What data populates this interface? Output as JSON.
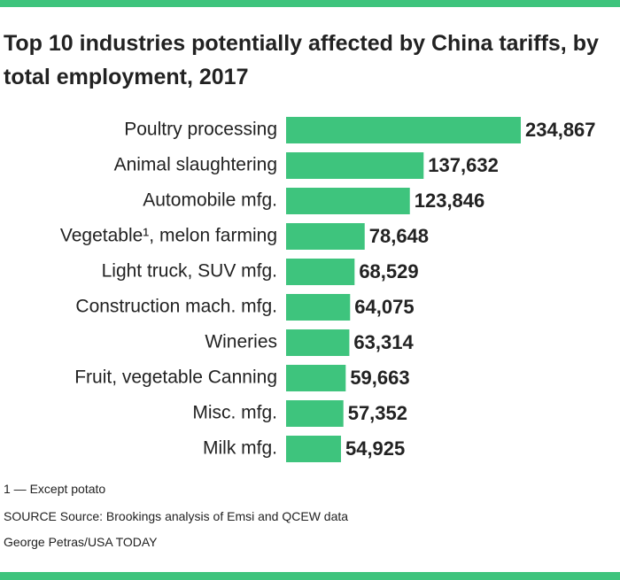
{
  "chart_data": {
    "type": "bar",
    "title": "Top 10 industries potentially affected by China tariffs, by total employment, 2017",
    "categories": [
      "Poultry processing",
      "Animal slaughtering",
      "Automobile mfg.",
      "Vegetable¹, melon farming",
      "Light truck, SUV mfg.",
      "Construction mach. mfg.",
      "Wineries",
      "Fruit, vegetable Canning",
      "Misc. mfg.",
      "Milk mfg."
    ],
    "values": [
      234867,
      137632,
      123846,
      78648,
      68529,
      64075,
      63314,
      59663,
      57352,
      54925
    ],
    "value_labels": [
      "234,867",
      "137,632",
      "123,846",
      "78,648",
      "68,529",
      "64,075",
      "63,314",
      "59,663",
      "57,352",
      "54,925"
    ],
    "color": "#3ec47d",
    "footnote": "1 — Except potato",
    "source": "SOURCE Source: Brookings analysis of Emsi and QCEW data",
    "credit": "George Petras/USA TODAY"
  }
}
